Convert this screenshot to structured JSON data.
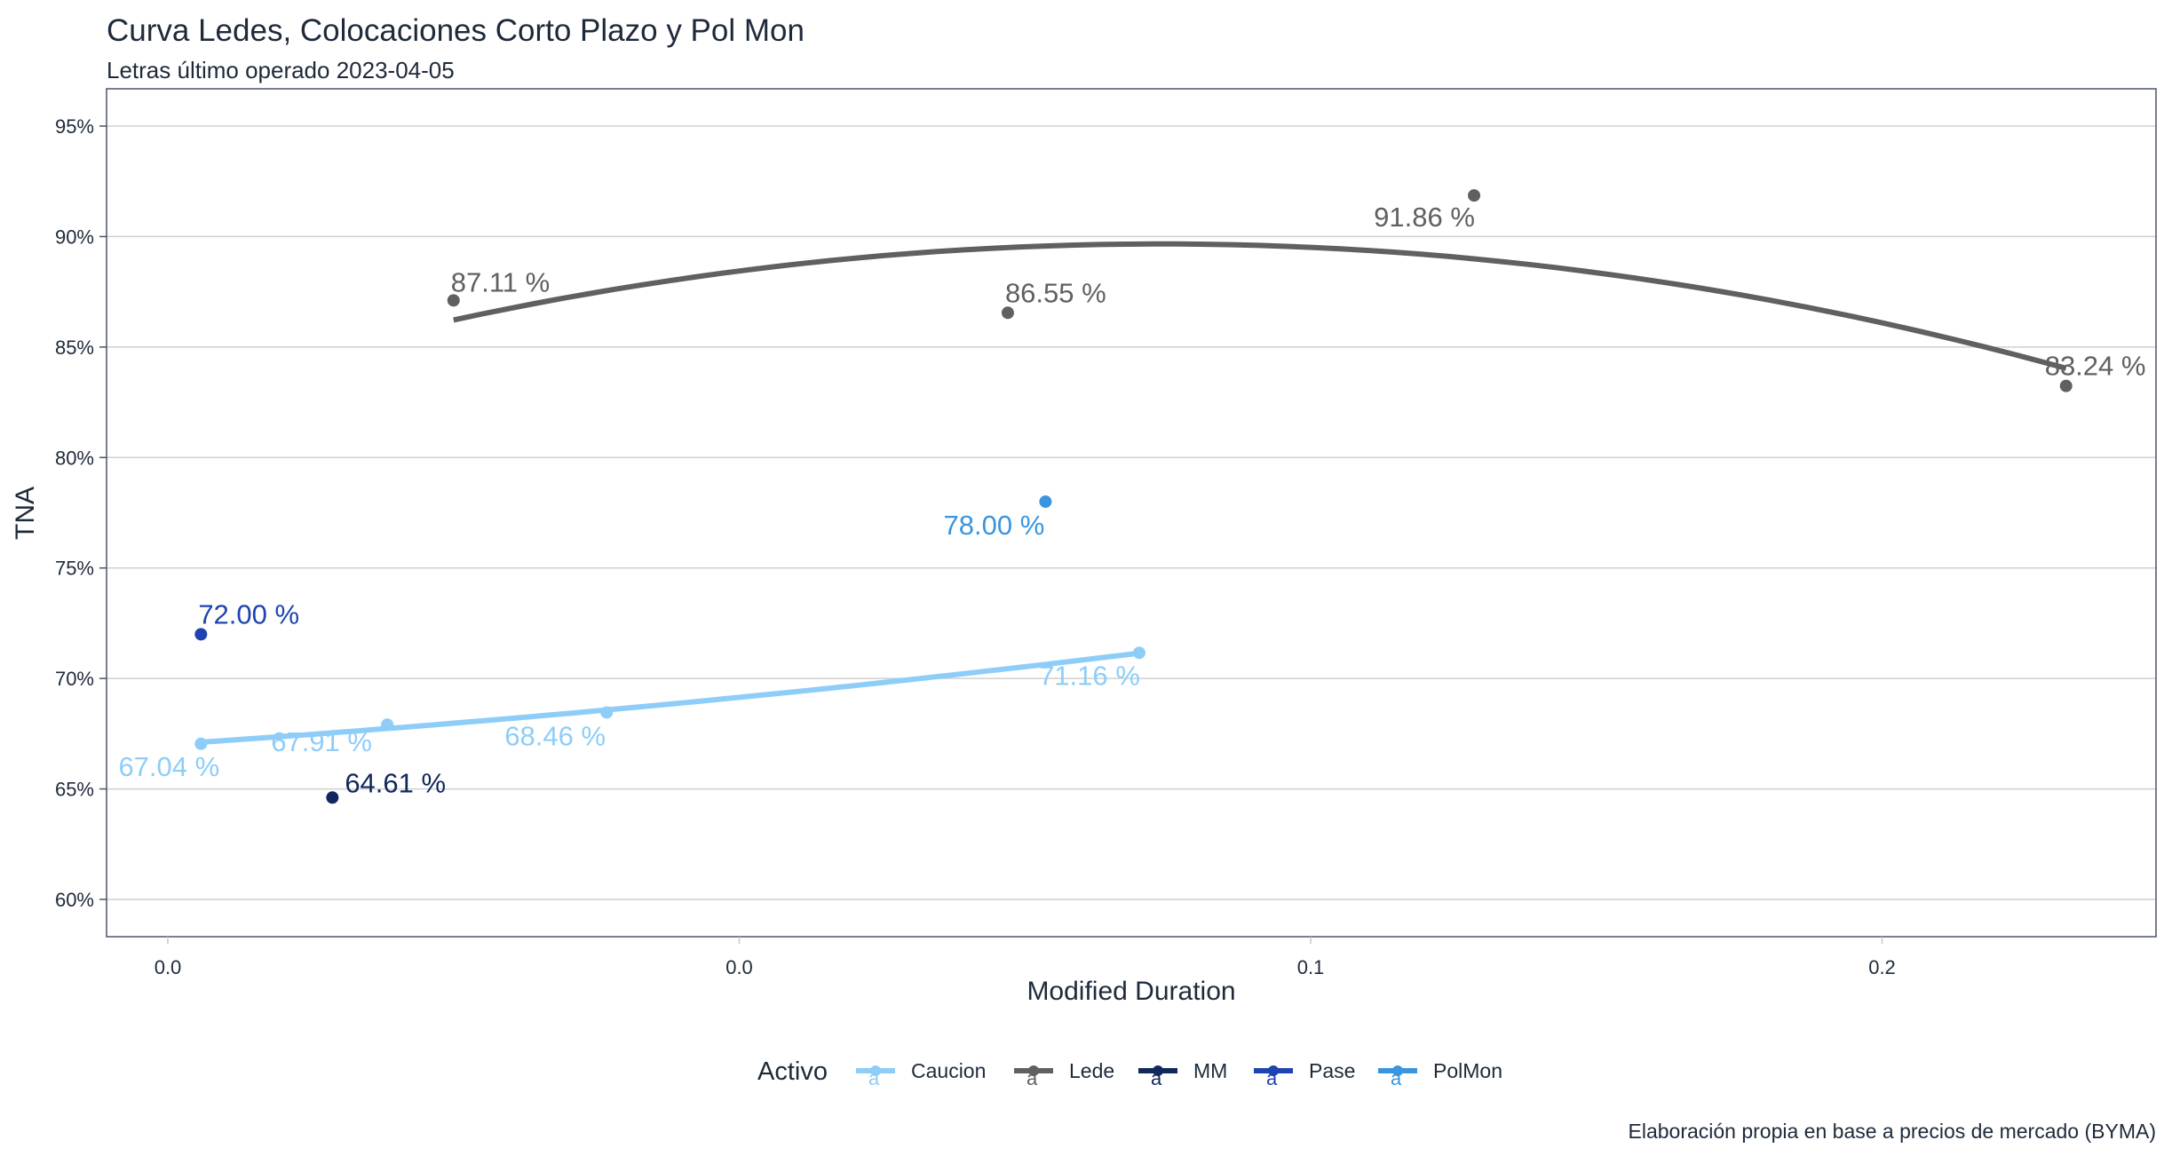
{
  "chart_data": {
    "type": "scatter",
    "title": "Curva Ledes, Colocaciones Corto Plazo y Pol Mon",
    "subtitle": "Letras último operado 2023-04-05",
    "xlabel": "Modified Duration",
    "ylabel": "TNA",
    "caption": "Elaboración propia en base a precios de mercado (BYMA)",
    "xlim": [
      -0.006,
      0.174
    ],
    "ylim": [
      58.3,
      96.7
    ],
    "x_ticks": [
      0,
      0.05,
      0.1,
      0.15
    ],
    "x_tick_labels": [
      "0.0",
      "0.0",
      "0.1",
      "0.2"
    ],
    "y_ticks": [
      60,
      65,
      70,
      75,
      80,
      85,
      90,
      95
    ],
    "y_tick_labels": [
      "60%",
      "65%",
      "70%",
      "75%",
      "80%",
      "85%",
      "90%",
      "95%"
    ],
    "grid": true,
    "legend": {
      "title": "Activo",
      "position": "bottom"
    },
    "series": [
      {
        "name": "Caucion",
        "color": "#8ecdf8",
        "fit_line": true,
        "x": [
          0.0029,
          0.0192,
          0.0384,
          0.085
        ],
        "y": [
          67.04,
          67.91,
          68.46,
          71.16
        ],
        "labels": [
          "67.04 %",
          "67.91 %",
          "68.46 %",
          "71.16 %"
        ]
      },
      {
        "name": "Lede",
        "color": "#606060",
        "fit_line": true,
        "x": [
          0.025,
          0.0735,
          0.1143,
          0.1661
        ],
        "y": [
          87.11,
          86.55,
          91.86,
          83.24
        ],
        "labels": [
          "87.11 %",
          "86.55 %",
          "91.86 %",
          "83.24 %"
        ]
      },
      {
        "name": "MM",
        "color": "#12285c",
        "fit_line": false,
        "x": [
          0.0144
        ],
        "y": [
          64.61
        ],
        "labels": [
          "64.61 %"
        ]
      },
      {
        "name": "Pase",
        "color": "#1d44b0",
        "fit_line": false,
        "x": [
          0.0029
        ],
        "y": [
          72.0
        ],
        "labels": [
          "72.00 %"
        ]
      },
      {
        "name": "PolMon",
        "color": "#3a95de",
        "fit_line": false,
        "x": [
          0.0768
        ],
        "y": [
          78.0
        ],
        "labels": [
          "78.00 %"
        ]
      }
    ]
  }
}
